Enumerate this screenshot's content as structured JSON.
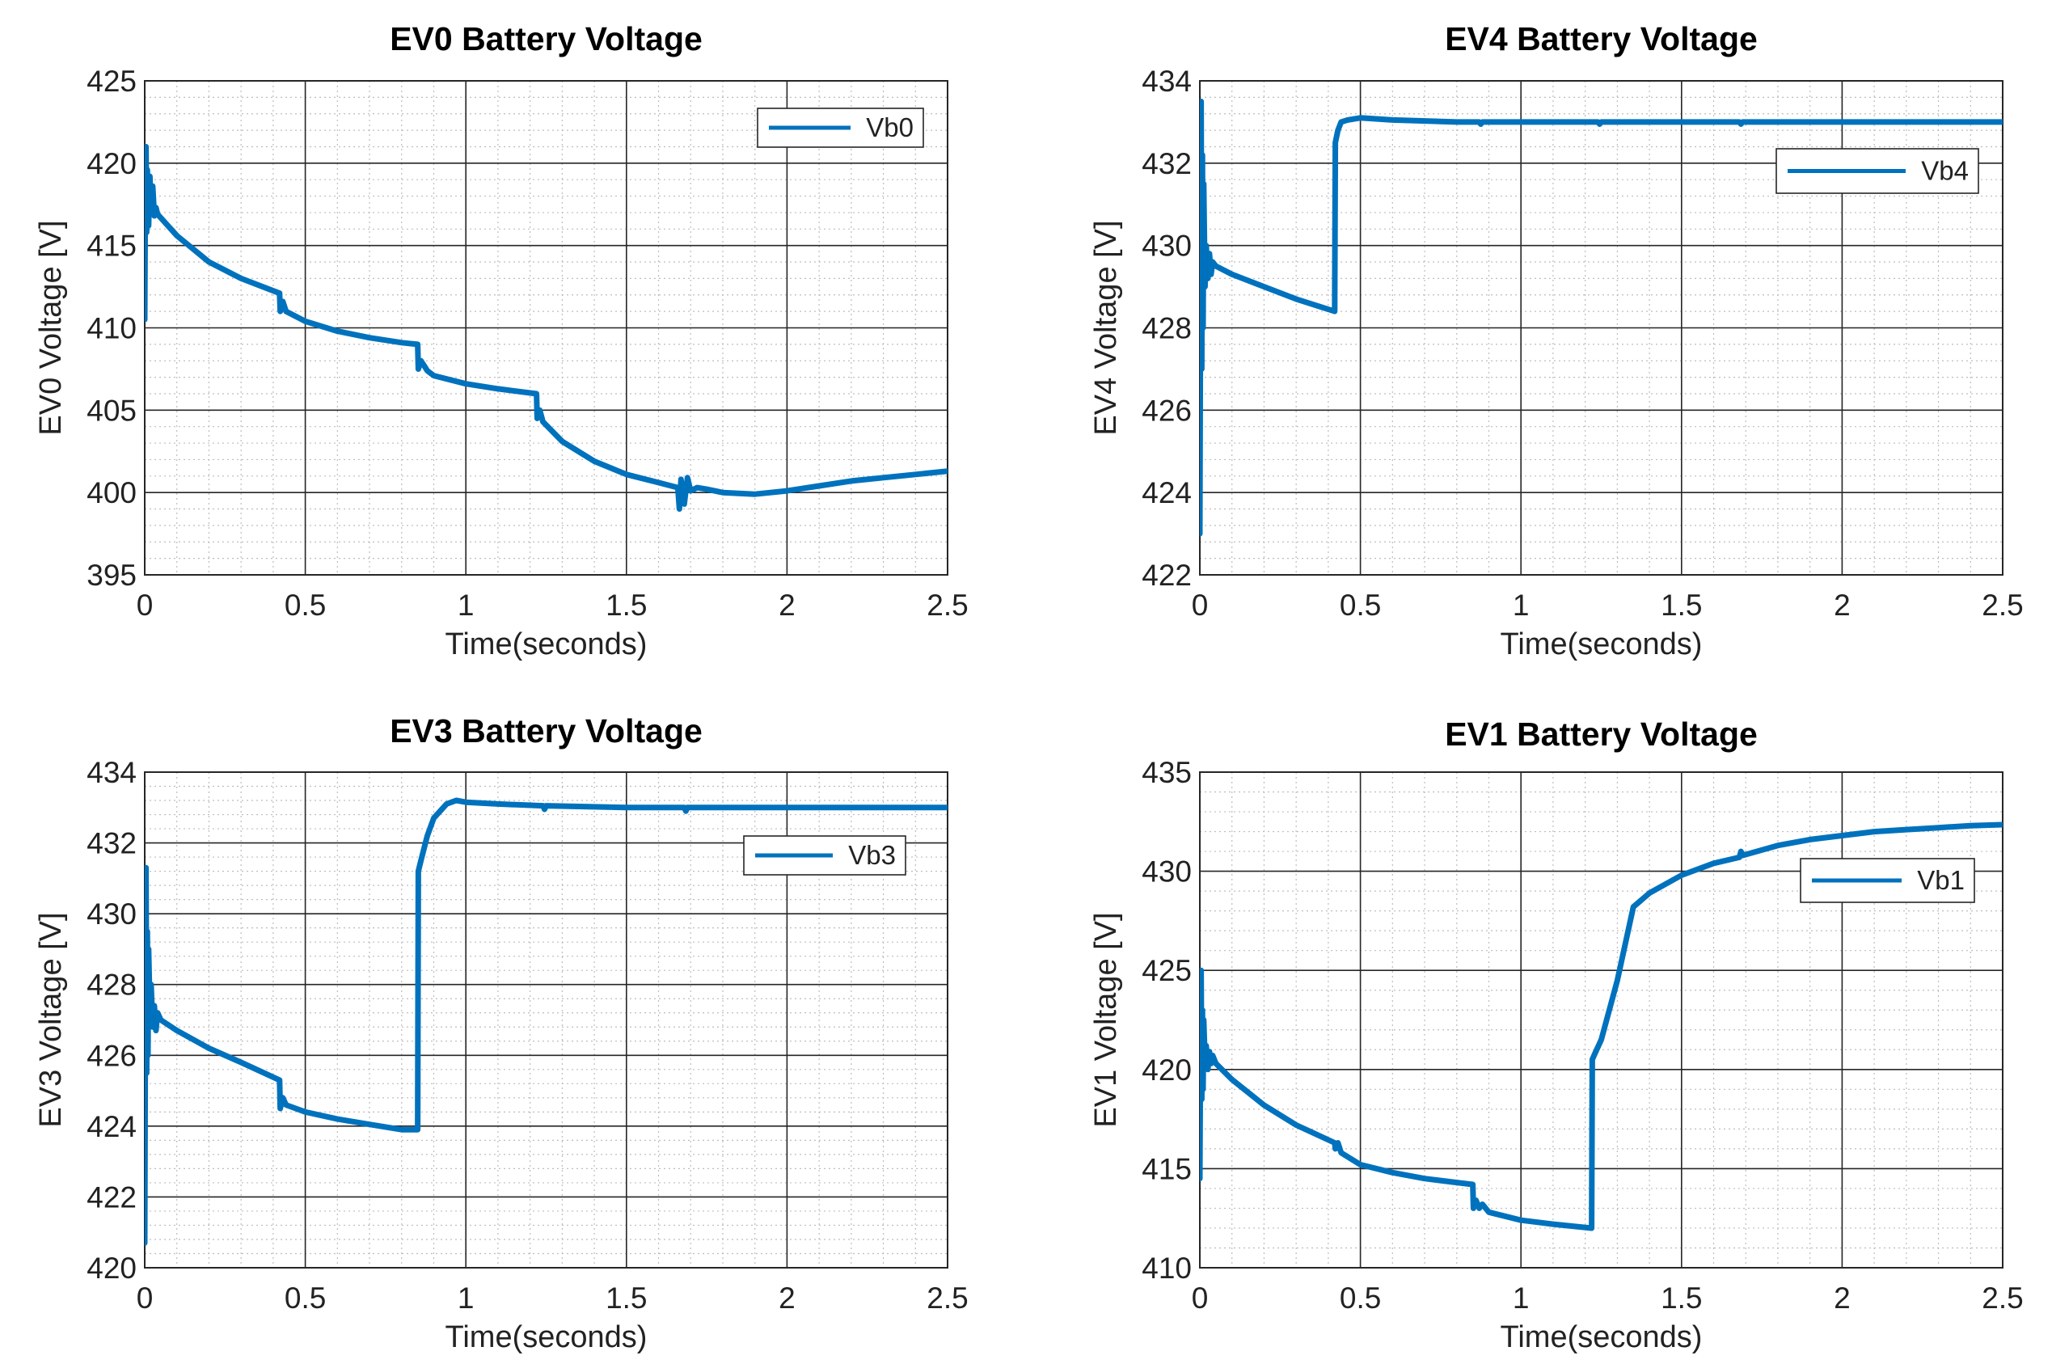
{
  "chart_data": [
    {
      "type": "line",
      "title": "EV0 Battery Voltage",
      "xlabel": "Time(seconds)",
      "ylabel": "EV0 Voltage [V]",
      "xlim": [
        0,
        2.5
      ],
      "ylim": [
        395,
        425
      ],
      "xticks": [
        0,
        0.5,
        1,
        1.5,
        2,
        2.5
      ],
      "xtick_labels": [
        "0",
        "0.5",
        "1",
        "1.5",
        "2",
        "2.5"
      ],
      "yticks": [
        395,
        400,
        405,
        410,
        415,
        420,
        425
      ],
      "ytick_labels": [
        "395",
        "400",
        "405",
        "410",
        "415",
        "420",
        "425"
      ],
      "grid": true,
      "minor_grid": true,
      "legend_position": "top-right",
      "series": [
        {
          "name": "Vb0",
          "color": "#0072BD",
          "x": [
            0,
            0.002,
            0.004,
            0.006,
            0.008,
            0.012,
            0.016,
            0.02,
            0.025,
            0.03,
            0.035,
            0.04,
            0.1,
            0.2,
            0.3,
            0.42,
            0.422,
            0.43,
            0.44,
            0.5,
            0.6,
            0.7,
            0.8,
            0.85,
            0.852,
            0.86,
            0.87,
            0.88,
            0.9,
            1.0,
            1.1,
            1.22,
            1.222,
            1.23,
            1.24,
            1.25,
            1.3,
            1.4,
            1.5,
            1.6,
            1.66,
            1.665,
            1.67,
            1.68,
            1.69,
            1.7,
            1.72,
            1.75,
            1.8,
            1.9,
            2.0,
            2.1,
            2.2,
            2.3,
            2.4,
            2.5
          ],
          "y": [
            410.5,
            419.0,
            421.0,
            415.8,
            419.6,
            416.2,
            419.2,
            417.0,
            418.6,
            416.8,
            417.3,
            416.9,
            415.6,
            414.0,
            413.0,
            412.1,
            411.0,
            411.6,
            411.0,
            410.4,
            409.8,
            409.4,
            409.1,
            409.0,
            407.5,
            408.0,
            407.7,
            407.4,
            407.1,
            406.6,
            406.3,
            406.0,
            404.5,
            405.0,
            404.3,
            404.1,
            403.1,
            401.9,
            401.1,
            400.6,
            400.3,
            399.0,
            400.8,
            399.3,
            400.9,
            400.1,
            400.3,
            400.2,
            400.0,
            399.9,
            400.1,
            400.4,
            400.7,
            400.9,
            401.1,
            401.3
          ]
        }
      ]
    },
    {
      "type": "line",
      "title": "EV4 Battery Voltage",
      "xlabel": "Time(seconds)",
      "ylabel": "EV4 Voltage [V]",
      "xlim": [
        0,
        2.5
      ],
      "ylim": [
        422,
        434
      ],
      "xticks": [
        0,
        0.5,
        1,
        1.5,
        2,
        2.5
      ],
      "xtick_labels": [
        "0",
        "0.5",
        "1",
        "1.5",
        "2",
        "2.5"
      ],
      "yticks": [
        422,
        424,
        426,
        428,
        430,
        432,
        434
      ],
      "ytick_labels": [
        "422",
        "424",
        "426",
        "428",
        "430",
        "432",
        "434"
      ],
      "grid": true,
      "minor_grid": true,
      "legend_position": "top-right",
      "series": [
        {
          "name": "Vb4",
          "color": "#0072BD",
          "x": [
            0,
            0.002,
            0.004,
            0.006,
            0.008,
            0.01,
            0.012,
            0.016,
            0.02,
            0.025,
            0.03,
            0.035,
            0.04,
            0.05,
            0.1,
            0.2,
            0.3,
            0.42,
            0.422,
            0.43,
            0.44,
            0.46,
            0.5,
            0.6,
            0.8,
            0.87,
            0.875,
            0.88,
            1.0,
            1.24,
            1.245,
            1.25,
            1.5,
            1.68,
            1.685,
            1.69,
            2.0,
            2.5
          ],
          "y": [
            423.0,
            428.5,
            433.5,
            427.0,
            432.2,
            428.0,
            431.5,
            429.0,
            430.0,
            429.2,
            429.8,
            429.3,
            429.6,
            429.5,
            429.3,
            429.0,
            428.7,
            428.4,
            432.5,
            432.8,
            433.0,
            433.05,
            433.1,
            433.05,
            433.0,
            433.0,
            432.95,
            433.0,
            433.0,
            433.0,
            432.95,
            433.0,
            433.0,
            433.0,
            432.95,
            433.0,
            433.0,
            433.0
          ]
        }
      ]
    },
    {
      "type": "line",
      "title": "EV3 Battery Voltage",
      "xlabel": "Time(seconds)",
      "ylabel": "EV3 Voltage [V]",
      "xlim": [
        0,
        2.5
      ],
      "ylim": [
        420,
        434
      ],
      "xticks": [
        0,
        0.5,
        1,
        1.5,
        2,
        2.5
      ],
      "xtick_labels": [
        "0",
        "0.5",
        "1",
        "1.5",
        "2",
        "2.5"
      ],
      "yticks": [
        420,
        422,
        424,
        426,
        428,
        430,
        432,
        434
      ],
      "ytick_labels": [
        "420",
        "422",
        "424",
        "426",
        "428",
        "430",
        "432",
        "434"
      ],
      "grid": true,
      "minor_grid": true,
      "legend_position": "top-right",
      "series": [
        {
          "name": "Vb3",
          "color": "#0072BD",
          "x": [
            0,
            0.002,
            0.004,
            0.006,
            0.008,
            0.01,
            0.012,
            0.016,
            0.02,
            0.025,
            0.03,
            0.035,
            0.04,
            0.05,
            0.1,
            0.2,
            0.3,
            0.42,
            0.422,
            0.43,
            0.44,
            0.5,
            0.6,
            0.7,
            0.8,
            0.85,
            0.852,
            0.86,
            0.88,
            0.9,
            0.94,
            0.97,
            1.0,
            1.1,
            1.24,
            1.245,
            1.25,
            1.5,
            1.68,
            1.685,
            1.69,
            2.0,
            2.5
          ],
          "y": [
            420.7,
            427.0,
            431.3,
            425.5,
            429.5,
            426.0,
            429.0,
            427.3,
            428.0,
            426.8,
            427.4,
            426.7,
            427.2,
            427.0,
            426.7,
            426.2,
            425.8,
            425.3,
            424.5,
            424.8,
            424.6,
            424.4,
            424.2,
            424.05,
            423.9,
            423.9,
            431.2,
            431.5,
            432.2,
            432.7,
            433.1,
            433.2,
            433.15,
            433.1,
            433.05,
            432.95,
            433.05,
            433.0,
            433.0,
            432.9,
            433.0,
            433.0,
            433.0
          ]
        }
      ]
    },
    {
      "type": "line",
      "title": "EV1 Battery Voltage",
      "xlabel": "Time(seconds)",
      "ylabel": "EV1 Voltage [V]",
      "xlim": [
        0,
        2.5
      ],
      "ylim": [
        410,
        435
      ],
      "xticks": [
        0,
        0.5,
        1,
        1.5,
        2,
        2.5
      ],
      "xtick_labels": [
        "0",
        "0.5",
        "1",
        "1.5",
        "2",
        "2.5"
      ],
      "yticks": [
        410,
        415,
        420,
        425,
        430,
        435
      ],
      "ytick_labels": [
        "410",
        "415",
        "420",
        "425",
        "430",
        "435"
      ],
      "grid": true,
      "minor_grid": true,
      "legend_position": "top-right",
      "series": [
        {
          "name": "Vb1",
          "color": "#0072BD",
          "x": [
            0,
            0.002,
            0.004,
            0.006,
            0.008,
            0.01,
            0.012,
            0.016,
            0.02,
            0.025,
            0.03,
            0.035,
            0.04,
            0.05,
            0.1,
            0.2,
            0.3,
            0.42,
            0.422,
            0.43,
            0.44,
            0.5,
            0.6,
            0.7,
            0.8,
            0.85,
            0.852,
            0.86,
            0.87,
            0.88,
            0.9,
            1.0,
            1.1,
            1.22,
            1.222,
            1.23,
            1.25,
            1.3,
            1.35,
            1.4,
            1.5,
            1.6,
            1.68,
            1.685,
            1.69,
            1.8,
            1.9,
            2.0,
            2.1,
            2.2,
            2.3,
            2.4,
            2.5
          ],
          "y": [
            414.5,
            421.0,
            425.0,
            418.5,
            423.0,
            419.0,
            422.5,
            420.5,
            421.2,
            420.0,
            420.9,
            420.3,
            420.7,
            420.3,
            419.5,
            418.2,
            417.2,
            416.3,
            416.0,
            416.3,
            415.8,
            415.2,
            414.8,
            414.5,
            414.3,
            414.2,
            413.0,
            413.4,
            413.0,
            413.2,
            412.8,
            412.4,
            412.2,
            412.0,
            420.5,
            420.8,
            421.5,
            424.5,
            428.2,
            428.9,
            429.8,
            430.4,
            430.7,
            431.0,
            430.8,
            431.3,
            431.6,
            431.8,
            432.0,
            432.1,
            432.2,
            432.3,
            432.35
          ]
        }
      ]
    }
  ]
}
